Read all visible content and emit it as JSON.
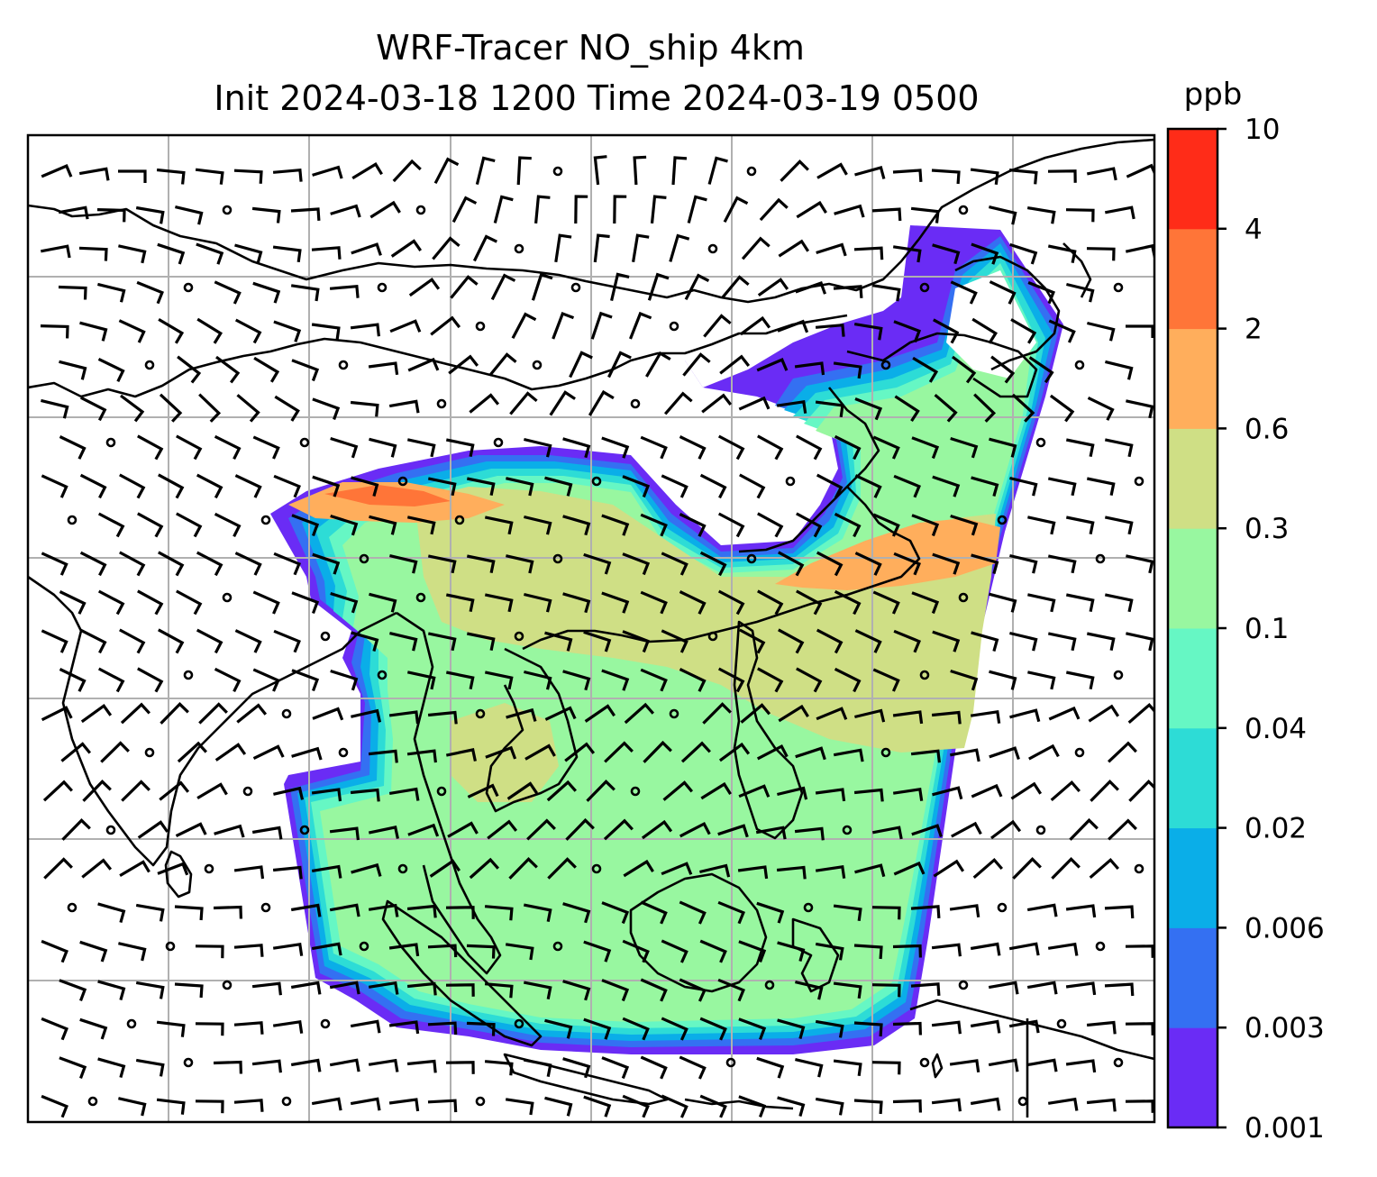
{
  "figure": {
    "title_line1": "WRF-Tracer NO_ship 4km",
    "title_line2": "Init 2024-03-18 1200 Time 2024-03-19 0500"
  },
  "colorbar": {
    "unit": "ppb",
    "levels": [
      "0.001",
      "0.003",
      "0.006",
      "0.02",
      "0.04",
      "0.1",
      "0.3",
      "0.6",
      "2",
      "4",
      "10"
    ],
    "colors": [
      "#6a2cf5",
      "#3470f2",
      "#0aaee8",
      "#2ddcd6",
      "#66f7c4",
      "#98f7a0",
      "#cfdf85",
      "#ffae5c",
      "#ff7538",
      "#ff2c18"
    ]
  },
  "map": {
    "colors": {
      "background": "#ffffff",
      "grid": "#b0b0b0",
      "coastline": "#000000",
      "barb": "#000000"
    },
    "gridlines": "on",
    "wind_barbs": "on"
  }
}
